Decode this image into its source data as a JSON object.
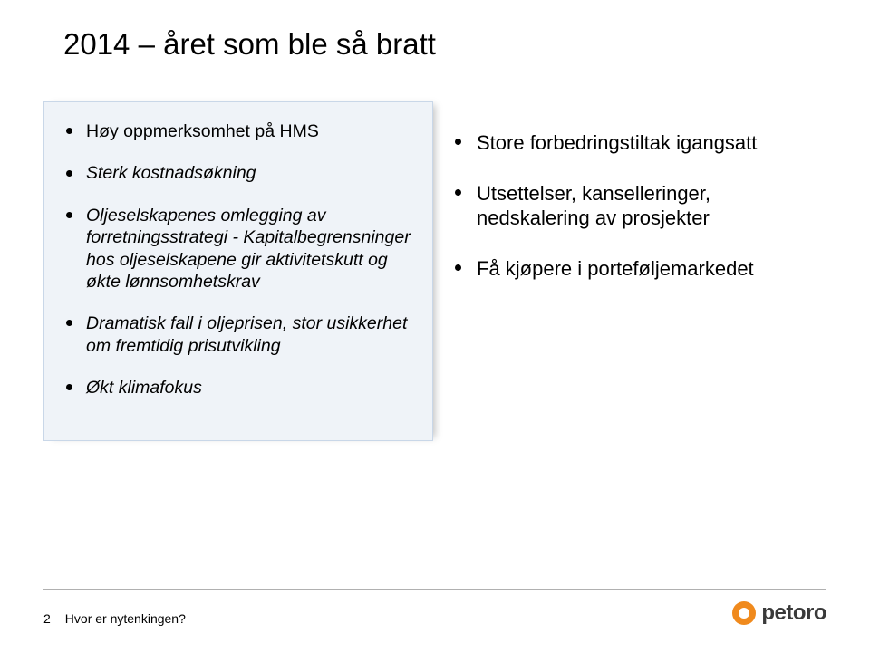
{
  "title": "2014 – året som ble så bratt",
  "left": {
    "items": [
      "Høy oppmerksomhet på HMS",
      "Sterk kostnadsøkning",
      "Oljeselskapenes omlegging av forretningsstrategi - Kapitalbegrensninger hos oljeselskapene gir aktivitetskutt og økte lønnsomhetskrav",
      "Dramatisk fall i oljeprisen, stor usikkerhet om fremtidig prisutvikling",
      "Økt klimafokus"
    ],
    "box_bg": "#eff3f8",
    "box_border": "#c9d7e8"
  },
  "right": {
    "items": [
      "Store forbedringstiltak igangsatt",
      "Utsettelser, kanselleringer, nedskalering av prosjekter",
      "Få kjøpere i porteføljemarkedet"
    ]
  },
  "footer": {
    "page_number": "2",
    "caption": "Hvor er nytenkingen?",
    "logo_text": "petoro",
    "logo_color": "#f08a1d"
  },
  "colors": {
    "text": "#000000",
    "background": "#ffffff",
    "rule": "#b0b0b0"
  },
  "fontsize": {
    "title": 33,
    "left_item": 19.5,
    "right_item": 22,
    "footer": 14
  }
}
